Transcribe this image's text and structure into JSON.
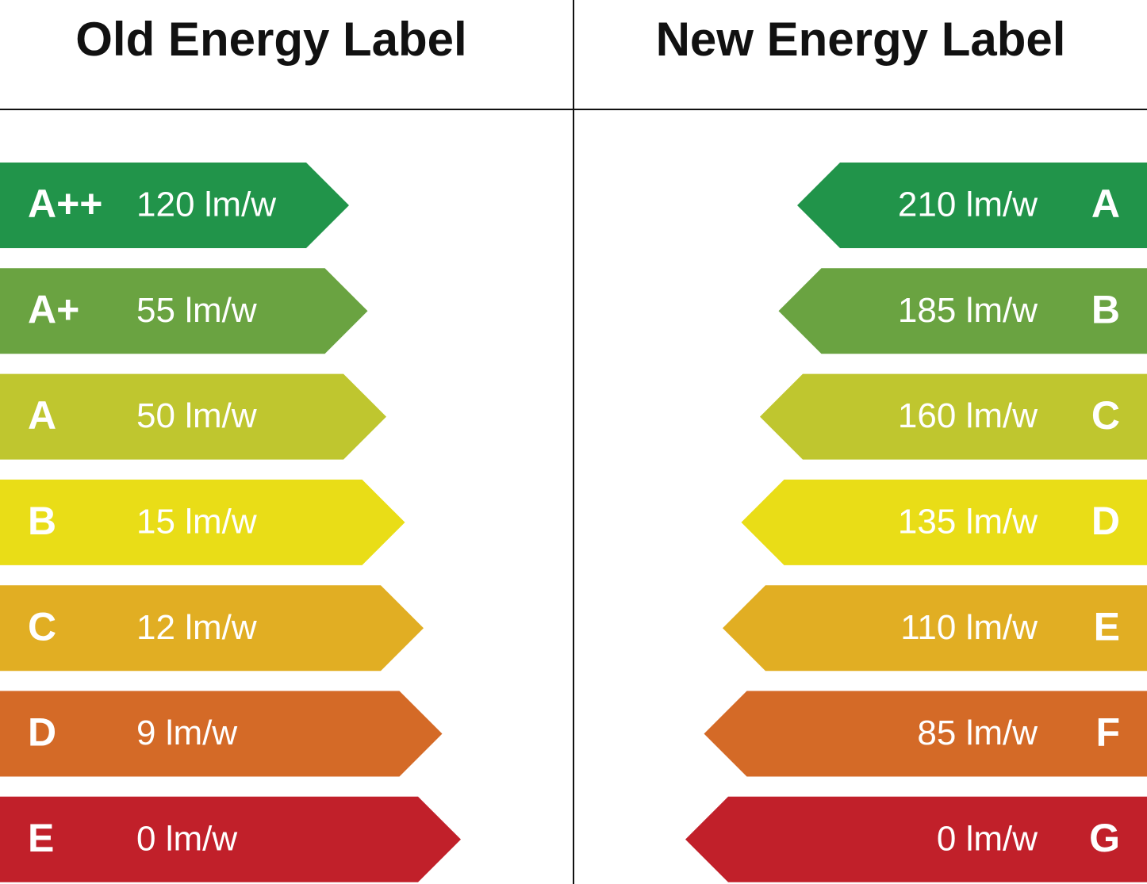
{
  "old": {
    "title": "Old Energy Label",
    "rows": [
      {
        "grade": "A++",
        "value": "120 lm/w",
        "color": "#21944a"
      },
      {
        "grade": "A+",
        "value": "55 lm/w",
        "color": "#6aa341"
      },
      {
        "grade": "A",
        "value": "50 lm/w",
        "color": "#bfc62f"
      },
      {
        "grade": "B",
        "value": "15 lm/w",
        "color": "#e9dd17"
      },
      {
        "grade": "C",
        "value": "12 lm/w",
        "color": "#e1ae23"
      },
      {
        "grade": "D",
        "value": "9 lm/w",
        "color": "#d46a27"
      },
      {
        "grade": "E",
        "value": "0 lm/w",
        "color": "#c1202a"
      }
    ]
  },
  "new": {
    "title": "New Energy Label",
    "rows": [
      {
        "grade": "A",
        "value": "210 lm/w",
        "color": "#21944a"
      },
      {
        "grade": "B",
        "value": "185 lm/w",
        "color": "#6aa341"
      },
      {
        "grade": "C",
        "value": "160 lm/w",
        "color": "#bfc62f"
      },
      {
        "grade": "D",
        "value": "135 lm/w",
        "color": "#e9dd17"
      },
      {
        "grade": "E",
        "value": "110 lm/w",
        "color": "#e1ae23"
      },
      {
        "grade": "F",
        "value": "85 lm/w",
        "color": "#d46a27"
      },
      {
        "grade": "G",
        "value": "0 lm/w",
        "color": "#c1202a"
      }
    ]
  }
}
